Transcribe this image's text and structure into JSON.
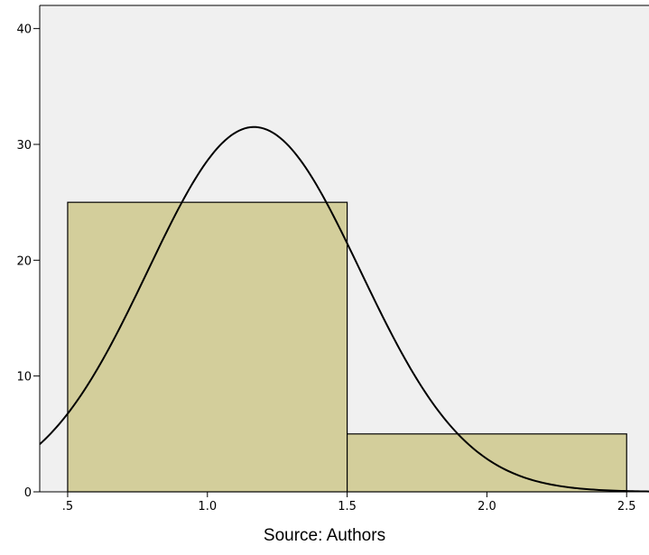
{
  "chart_data": {
    "type": "bar",
    "subtype": "histogram with normal curve",
    "bins": [
      {
        "from": 0.5,
        "to": 1.5,
        "value": 25
      },
      {
        "from": 1.5,
        "to": 2.5,
        "value": 5
      }
    ],
    "normal_curve": {
      "mean": 1.167,
      "peak": 31.5,
      "sd": 0.38
    },
    "xlim": [
      0.4,
      2.58
    ],
    "ylim": [
      0,
      42
    ],
    "x_ticks": [
      {
        "value": 0.5,
        "label": ".5"
      },
      {
        "value": 1.0,
        "label": "1.0"
      },
      {
        "value": 1.5,
        "label": "1.5"
      },
      {
        "value": 2.0,
        "label": "2.0"
      },
      {
        "value": 2.5,
        "label": "2.5"
      }
    ],
    "y_ticks": [
      {
        "value": 0,
        "label": "0"
      },
      {
        "value": 10,
        "label": "10"
      },
      {
        "value": 20,
        "label": "20"
      },
      {
        "value": 30,
        "label": "30"
      },
      {
        "value": 40,
        "label": "40"
      }
    ],
    "title": "",
    "xlabel": "",
    "ylabel": "",
    "grid": false,
    "colors": {
      "plot_background": "#f0f0f0",
      "bar_fill": "#d3ce9b",
      "bar_stroke": "#000000",
      "curve": "#000000"
    }
  },
  "caption": "Source: Authors"
}
